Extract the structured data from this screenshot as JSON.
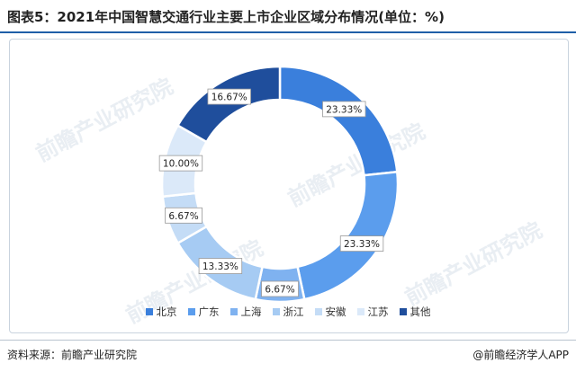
{
  "title": "图表5：2021年中国智慧交通行业主要上市企业区域分布情况(单位：%)",
  "source": "资料来源：前瞻产业研究院",
  "brand": "@前瞻经济学人APP",
  "watermark_text": "前瞻产业研究院",
  "chart_data": {
    "type": "pie",
    "donut": true,
    "categories": [
      "北京",
      "广东",
      "上海",
      "浙江",
      "安徽",
      "江苏",
      "其他"
    ],
    "values": [
      23.33,
      23.33,
      6.67,
      13.33,
      6.67,
      10.0,
      16.67
    ],
    "labels": [
      "23.33%",
      "23.33%",
      "6.67%",
      "13.33%",
      "6.67%",
      "10.00%",
      "16.67%"
    ],
    "colors": [
      "#3a7fdc",
      "#5b9ded",
      "#7fb2f0",
      "#a6cbf3",
      "#c4dcf6",
      "#dbe9f9",
      "#1f4e9c"
    ],
    "legend_position": "bottom"
  }
}
